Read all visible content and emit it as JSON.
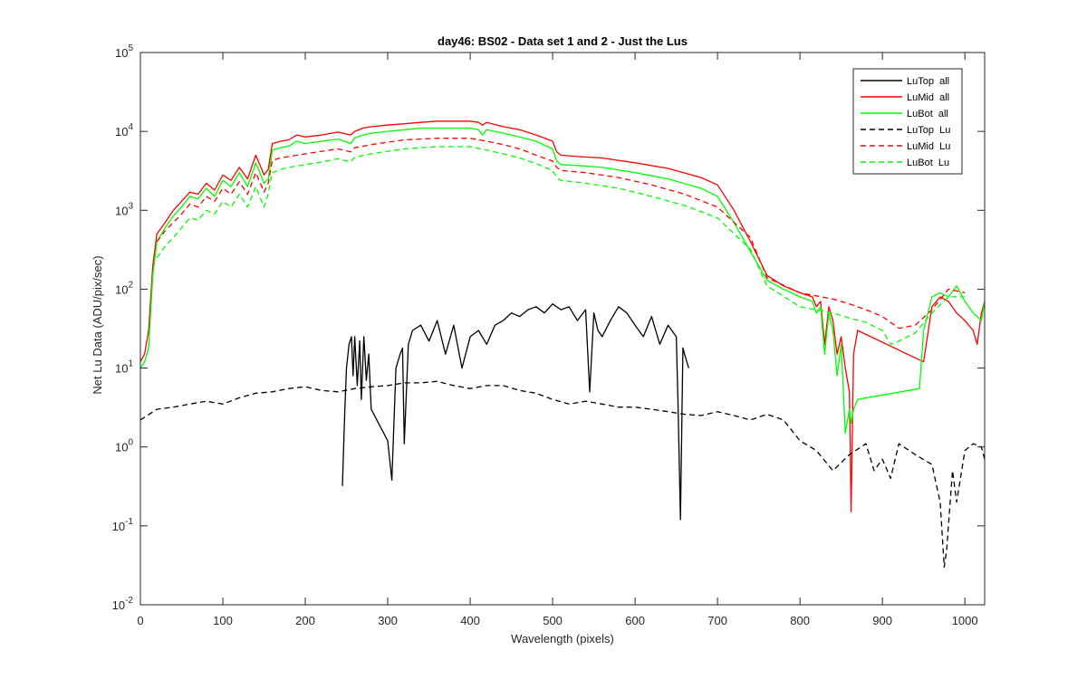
{
  "chart_data": {
    "type": "line",
    "title": "day46: BS02 - Data set 1 and 2 - Just the Lus",
    "xlabel": "Wavelength (pixels)",
    "ylabel": "Net Lu Data (ADU/pix/sec)",
    "xlim": [
      0,
      1024
    ],
    "ylim": [
      0.01,
      100000
    ],
    "yscale": "log",
    "grid": false,
    "legend_position": "top-right",
    "x_ticks": [
      "0",
      "100",
      "200",
      "300",
      "400",
      "500",
      "600",
      "700",
      "800",
      "900",
      "1000"
    ],
    "y_ticks": [
      {
        "base": "10",
        "exp": "-2"
      },
      {
        "base": "10",
        "exp": "-1"
      },
      {
        "base": "10",
        "exp": "0"
      },
      {
        "base": "10",
        "exp": "1"
      },
      {
        "base": "10",
        "exp": "2"
      },
      {
        "base": "10",
        "exp": "3"
      },
      {
        "base": "10",
        "exp": "4"
      },
      {
        "base": "10",
        "exp": "5"
      }
    ],
    "series": [
      {
        "name": "LuTop  all",
        "color": "#000000",
        "style": "solid",
        "x": [
          245,
          248,
          250,
          253,
          256,
          258,
          260,
          263,
          266,
          268,
          271,
          274,
          277,
          280,
          300,
          305,
          310,
          315,
          318,
          320,
          325,
          330,
          340,
          350,
          360,
          370,
          380,
          390,
          400,
          410,
          420,
          430,
          440,
          450,
          460,
          470,
          480,
          490,
          500,
          510,
          520,
          530,
          540,
          545,
          550,
          555,
          560,
          570,
          580,
          590,
          600,
          610,
          620,
          630,
          640,
          650,
          652,
          655,
          658,
          660,
          665
        ],
        "y": [
          0.32,
          3,
          10,
          20,
          25,
          8,
          25,
          6,
          22,
          4,
          25,
          7,
          15,
          3,
          1.2,
          0.38,
          10,
          15,
          18,
          1.1,
          20,
          30,
          35,
          22,
          40,
          15,
          35,
          10,
          25,
          30,
          20,
          35,
          40,
          50,
          45,
          55,
          60,
          50,
          65,
          55,
          60,
          40,
          55,
          5,
          50,
          30,
          25,
          40,
          60,
          50,
          35,
          25,
          45,
          20,
          35,
          25,
          4,
          0.12,
          18,
          15,
          10
        ]
      },
      {
        "name": "LuMid  all",
        "color": "#ff0000",
        "style": "solid",
        "x": [
          0,
          5,
          10,
          15,
          20,
          30,
          40,
          50,
          60,
          70,
          80,
          90,
          100,
          110,
          120,
          130,
          140,
          150,
          155,
          160,
          170,
          180,
          190,
          200,
          220,
          240,
          255,
          260,
          270,
          280,
          300,
          320,
          340,
          360,
          380,
          400,
          410,
          415,
          420,
          440,
          460,
          480,
          500,
          505,
          510,
          530,
          560,
          600,
          640,
          680,
          700,
          720,
          740,
          760,
          780,
          800,
          815,
          820,
          825,
          830,
          835,
          840,
          845,
          850,
          855,
          860,
          862,
          865,
          870,
          950,
          960,
          970,
          980,
          990,
          1000,
          1010,
          1015,
          1020,
          1024
        ],
        "y": [
          12,
          15,
          30,
          200,
          500,
          700,
          1000,
          1300,
          1700,
          1600,
          2200,
          1800,
          2800,
          2400,
          3500,
          2500,
          5000,
          2800,
          3300,
          7000,
          7500,
          7800,
          9000,
          8500,
          9000,
          9800,
          9000,
          10000,
          11000,
          11500,
          12000,
          12500,
          13000,
          13500,
          13500,
          13500,
          13000,
          12000,
          13000,
          11500,
          10500,
          9000,
          7500,
          5500,
          5000,
          4800,
          4600,
          4000,
          3400,
          2600,
          2100,
          1000,
          400,
          150,
          110,
          90,
          80,
          60,
          70,
          20,
          60,
          40,
          15,
          25,
          10,
          5,
          0.15,
          15,
          30,
          12,
          60,
          80,
          70,
          50,
          40,
          30,
          20,
          50,
          70
        ]
      },
      {
        "name": "LuBot  all",
        "color": "#00ff00",
        "style": "solid",
        "x": [
          0,
          5,
          10,
          15,
          20,
          30,
          40,
          50,
          60,
          70,
          80,
          90,
          100,
          110,
          120,
          130,
          140,
          150,
          155,
          160,
          170,
          180,
          190,
          200,
          220,
          240,
          255,
          260,
          270,
          280,
          300,
          320,
          340,
          360,
          380,
          400,
          410,
          415,
          420,
          440,
          460,
          480,
          500,
          505,
          510,
          530,
          560,
          600,
          640,
          680,
          700,
          720,
          740,
          760,
          780,
          800,
          815,
          820,
          825,
          830,
          835,
          840,
          845,
          850,
          855,
          860,
          862,
          865,
          870,
          945,
          950,
          960,
          970,
          980,
          990,
          1000,
          1010,
          1020,
          1024
        ],
        "y": [
          10,
          12,
          18,
          150,
          400,
          600,
          850,
          1100,
          1500,
          1400,
          1900,
          1500,
          2400,
          2000,
          3000,
          2000,
          4000,
          2200,
          2500,
          5800,
          6200,
          6500,
          7500,
          7000,
          7500,
          8000,
          7000,
          8300,
          9000,
          9500,
          10000,
          10500,
          11000,
          11000,
          11000,
          11000,
          10500,
          9000,
          10500,
          9500,
          8500,
          7500,
          6000,
          4200,
          3800,
          3700,
          3500,
          3000,
          2500,
          1900,
          1500,
          700,
          300,
          130,
          100,
          80,
          70,
          50,
          60,
          15,
          50,
          30,
          8,
          20,
          1.5,
          3,
          2,
          3,
          4,
          5.5,
          30,
          80,
          90,
          80,
          110,
          70,
          50,
          40,
          70
        ]
      },
      {
        "name": "LuTop  Lu",
        "color": "#000000",
        "style": "dashed",
        "x": [
          0,
          20,
          40,
          60,
          80,
          100,
          120,
          140,
          160,
          180,
          200,
          220,
          240,
          260,
          280,
          300,
          320,
          340,
          360,
          380,
          400,
          420,
          440,
          460,
          480,
          500,
          520,
          540,
          560,
          580,
          600,
          620,
          640,
          660,
          680,
          700,
          720,
          740,
          760,
          780,
          800,
          820,
          840,
          860,
          880,
          890,
          900,
          910,
          920,
          940,
          960,
          970,
          975,
          978,
          985,
          990,
          1000,
          1010,
          1020,
          1024
        ],
        "y": [
          2.2,
          3,
          3.2,
          3.5,
          3.8,
          3.5,
          4.2,
          4.8,
          5,
          5.5,
          5.8,
          5.2,
          5,
          5.5,
          5.8,
          6,
          6.5,
          6.5,
          6.8,
          6,
          5.5,
          6,
          6,
          5.2,
          4.8,
          4,
          3.5,
          3.8,
          3.5,
          3.2,
          3.2,
          3,
          2.8,
          2.6,
          2.5,
          2.8,
          2.5,
          2.2,
          2.6,
          2.2,
          1.2,
          0.9,
          0.5,
          0.8,
          1.1,
          0.5,
          0.7,
          0.4,
          1.1,
          0.8,
          0.6,
          0.2,
          0.03,
          0.05,
          0.5,
          0.2,
          0.9,
          1.1,
          1,
          0.7
        ]
      },
      {
        "name": "LuMid  Lu",
        "color": "#ff0000",
        "style": "dashed",
        "x": [
          20,
          30,
          40,
          50,
          60,
          70,
          80,
          90,
          100,
          110,
          120,
          130,
          140,
          150,
          155,
          160,
          170,
          180,
          200,
          220,
          240,
          255,
          260,
          280,
          300,
          320,
          340,
          360,
          380,
          400,
          420,
          440,
          460,
          480,
          500,
          505,
          510,
          540,
          580,
          620,
          660,
          700,
          740,
          760,
          800,
          840,
          860,
          880,
          900,
          920,
          940,
          960,
          980,
          1000
        ],
        "y": [
          400,
          550,
          700,
          900,
          1200,
          1100,
          1500,
          1300,
          1900,
          1600,
          2300,
          1600,
          3000,
          1700,
          2200,
          4300,
          4600,
          4800,
          5200,
          5600,
          6000,
          5500,
          6200,
          6800,
          7300,
          7800,
          8000,
          8200,
          8200,
          8200,
          7500,
          6800,
          6000,
          5000,
          4200,
          3500,
          3200,
          3000,
          2600,
          2100,
          1600,
          1100,
          450,
          140,
          90,
          75,
          65,
          55,
          45,
          32,
          35,
          55,
          100,
          90
        ]
      },
      {
        "name": "LuBot  Lu",
        "color": "#00ff00",
        "style": "dashed",
        "x": [
          20,
          30,
          40,
          50,
          60,
          70,
          80,
          90,
          100,
          110,
          120,
          130,
          140,
          150,
          155,
          160,
          170,
          180,
          200,
          220,
          240,
          255,
          260,
          280,
          300,
          320,
          340,
          360,
          380,
          400,
          420,
          440,
          460,
          480,
          500,
          505,
          510,
          540,
          580,
          620,
          660,
          700,
          740,
          760,
          800,
          840,
          860,
          880,
          900,
          910,
          920,
          940,
          960,
          980,
          1000
        ],
        "y": [
          250,
          350,
          450,
          600,
          800,
          750,
          1000,
          900,
          1300,
          1100,
          1600,
          1100,
          2000,
          1100,
          1600,
          3000,
          3300,
          3500,
          3800,
          4100,
          4500,
          4100,
          4700,
          5200,
          5600,
          6000,
          6200,
          6400,
          6400,
          6400,
          5800,
          5200,
          4600,
          3900,
          3200,
          2600,
          2400,
          2200,
          1900,
          1500,
          1150,
          800,
          320,
          110,
          60,
          50,
          43,
          38,
          30,
          20,
          22,
          28,
          50,
          80,
          80
        ]
      }
    ]
  }
}
